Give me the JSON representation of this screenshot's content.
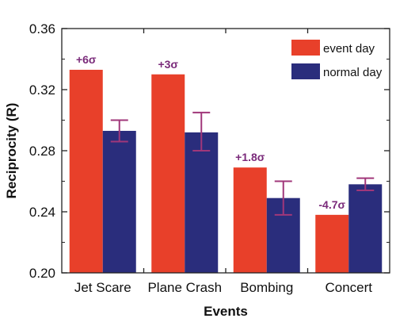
{
  "chart_data": {
    "type": "bar",
    "xlabel": "Events",
    "ylabel": "Reciprocity (R)",
    "ylim": [
      0.2,
      0.36
    ],
    "yticks": [
      "0.20",
      "0.24",
      "0.28",
      "0.32",
      "0.36"
    ],
    "categories": [
      "Jet Scare",
      "Plane Crash",
      "Bombing",
      "Concert"
    ],
    "series": [
      {
        "name": "event day",
        "values": [
          0.333,
          0.33,
          0.269,
          0.238
        ],
        "color": "#e8402a"
      },
      {
        "name": "normal day",
        "values": [
          0.293,
          0.292,
          0.249,
          0.258
        ],
        "color": "#2a2d7c",
        "error": [
          [
            0.286,
            0.3
          ],
          [
            0.28,
            0.305
          ],
          [
            0.238,
            0.26
          ],
          [
            0.254,
            0.262
          ]
        ]
      }
    ],
    "error_bar_color": "#a0377a",
    "annotations": [
      "+6σ",
      "+3σ",
      "+1.8σ",
      "-4.7σ"
    ],
    "annotation_color": "#7a2a7a",
    "legend_position": "top-right",
    "grid": false
  }
}
